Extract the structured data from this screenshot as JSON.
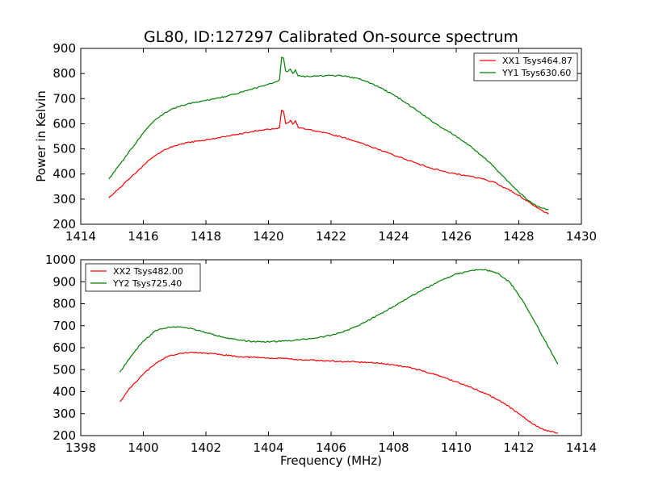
{
  "colors": {
    "xx": "#ff0000",
    "yy": "#008000",
    "axes": "#000000",
    "background": "#ffffff"
  },
  "chart_data": [
    {
      "type": "line",
      "title": "GL80, ID:127297 Calibrated On-source spectrum",
      "xlabel": "",
      "ylabel": "Power in Kelvin",
      "xlim": [
        1414,
        1430
      ],
      "ylim": [
        200,
        900
      ],
      "xticks": [
        1414,
        1416,
        1418,
        1420,
        1422,
        1424,
        1426,
        1428,
        1430
      ],
      "yticks": [
        200,
        300,
        400,
        500,
        600,
        700,
        800,
        900
      ],
      "legend_position": "upper-right",
      "grid": false,
      "series": [
        {
          "name": "XX1 Tsys464.87",
          "color": "#ff0000",
          "x": [
            1414.9,
            1415.2,
            1415.5,
            1415.8,
            1416.1,
            1416.4,
            1416.7,
            1417.0,
            1417.4,
            1417.8,
            1418.2,
            1418.6,
            1419.0,
            1419.4,
            1419.8,
            1420.2,
            1420.35,
            1420.42,
            1420.48,
            1420.55,
            1420.62,
            1420.7,
            1420.78,
            1420.86,
            1420.95,
            1421.2,
            1421.6,
            1422.0,
            1422.4,
            1422.8,
            1423.2,
            1423.6,
            1424.0,
            1424.4,
            1424.8,
            1425.2,
            1425.6,
            1426.0,
            1426.4,
            1426.8,
            1427.2,
            1427.6,
            1428.0,
            1428.4,
            1428.7,
            1428.95
          ],
          "y": [
            305,
            340,
            375,
            410,
            445,
            475,
            498,
            512,
            525,
            532,
            540,
            548,
            557,
            567,
            575,
            580,
            584,
            655,
            650,
            600,
            604,
            614,
            598,
            612,
            585,
            578,
            570,
            558,
            545,
            530,
            512,
            494,
            475,
            458,
            440,
            424,
            410,
            400,
            392,
            382,
            368,
            342,
            315,
            282,
            258,
            240
          ]
        },
        {
          "name": "YY1 Tsys630.60",
          "color": "#008000",
          "x": [
            1414.9,
            1415.2,
            1415.5,
            1415.8,
            1416.1,
            1416.4,
            1416.7,
            1417.0,
            1417.4,
            1417.8,
            1418.2,
            1418.6,
            1419.0,
            1419.4,
            1419.8,
            1420.2,
            1420.35,
            1420.42,
            1420.48,
            1420.55,
            1420.62,
            1420.7,
            1420.78,
            1420.86,
            1420.95,
            1421.2,
            1421.6,
            1422.0,
            1422.4,
            1422.8,
            1423.2,
            1423.6,
            1424.0,
            1424.4,
            1424.8,
            1425.2,
            1425.6,
            1426.0,
            1426.4,
            1426.8,
            1427.2,
            1427.6,
            1428.0,
            1428.4,
            1428.7,
            1428.95
          ],
          "y": [
            380,
            430,
            480,
            530,
            580,
            618,
            645,
            662,
            678,
            688,
            698,
            708,
            720,
            735,
            750,
            765,
            775,
            865,
            862,
            810,
            808,
            818,
            800,
            815,
            790,
            788,
            790,
            792,
            790,
            782,
            765,
            742,
            715,
            682,
            648,
            612,
            580,
            550,
            515,
            475,
            430,
            378,
            328,
            285,
            265,
            258
          ]
        }
      ]
    },
    {
      "type": "line",
      "title": "",
      "xlabel": "Frequency (MHz)",
      "ylabel": "",
      "xlim": [
        1398,
        1414
      ],
      "ylim": [
        200,
        1000
      ],
      "xticks": [
        1398,
        1400,
        1402,
        1404,
        1406,
        1408,
        1410,
        1412,
        1414
      ],
      "yticks": [
        200,
        300,
        400,
        500,
        600,
        700,
        800,
        900,
        1000
      ],
      "legend_position": "upper-left",
      "grid": false,
      "series": [
        {
          "name": "XX2 Tsys482.00",
          "color": "#ff0000",
          "x": [
            1399.25,
            1399.6,
            1400.0,
            1400.4,
            1400.8,
            1401.2,
            1401.6,
            1402.0,
            1402.5,
            1403.0,
            1403.5,
            1404.0,
            1404.5,
            1405.0,
            1405.5,
            1406.0,
            1406.5,
            1407.0,
            1407.5,
            1408.0,
            1408.5,
            1409.0,
            1409.5,
            1410.0,
            1410.5,
            1411.0,
            1411.5,
            1412.0,
            1412.4,
            1412.8,
            1413.25
          ],
          "y": [
            355,
            420,
            480,
            530,
            562,
            575,
            578,
            575,
            568,
            560,
            556,
            553,
            550,
            546,
            542,
            539,
            536,
            534,
            530,
            522,
            510,
            492,
            470,
            445,
            418,
            388,
            350,
            300,
            258,
            225,
            212
          ]
        },
        {
          "name": "YY2 Tsys725.40",
          "color": "#008000",
          "x": [
            1399.25,
            1399.6,
            1400.0,
            1400.4,
            1400.8,
            1401.2,
            1401.6,
            1402.0,
            1402.5,
            1403.0,
            1403.5,
            1404.0,
            1404.5,
            1405.0,
            1405.5,
            1406.0,
            1406.5,
            1407.0,
            1407.5,
            1408.0,
            1408.5,
            1409.0,
            1409.5,
            1410.0,
            1410.5,
            1410.9,
            1411.3,
            1411.7,
            1412.1,
            1412.5,
            1412.9,
            1413.25
          ],
          "y": [
            488,
            560,
            630,
            678,
            694,
            695,
            685,
            668,
            650,
            635,
            628,
            627,
            630,
            636,
            644,
            656,
            678,
            710,
            748,
            788,
            830,
            868,
            905,
            935,
            952,
            955,
            940,
            900,
            820,
            720,
            615,
            525
          ]
        }
      ]
    }
  ]
}
